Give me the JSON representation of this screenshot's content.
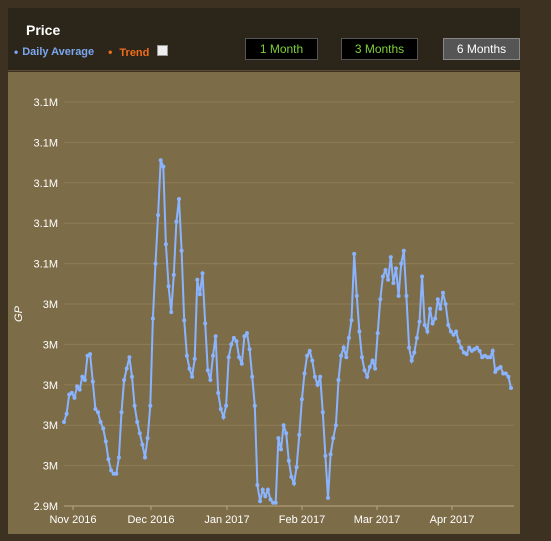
{
  "header": {
    "title": "Price",
    "legend": {
      "daily_average": "Daily Average",
      "trend": "Trend"
    },
    "ranges": [
      {
        "label": "1 Month",
        "active": false
      },
      {
        "label": "3 Months",
        "active": false
      },
      {
        "label": "6 Months",
        "active": true
      }
    ]
  },
  "colors": {
    "series": "#8ab4ff",
    "trend": "#f26d1d",
    "range_text": "#7fcf3a"
  },
  "chart_data": {
    "type": "line",
    "ylabel": "GP",
    "y_tick_labels": [
      "2.9M",
      "3M",
      "3M",
      "3M",
      "3M",
      "3M",
      "3.1M",
      "3.1M",
      "3.1M",
      "3.1M",
      "3.1M"
    ],
    "ylim": [
      2900000,
      3150000
    ],
    "x_tick_labels": [
      "Nov 2016",
      "Dec 2016",
      "Jan 2017",
      "Feb 2017",
      "Mar 2017",
      "Apr 2017"
    ],
    "x_start": "2016-10-31",
    "x_end": "2017-04-28",
    "series": [
      {
        "name": "Daily Average",
        "values": [
          2952000,
          2957000,
          2969000,
          2970000,
          2967000,
          2974000,
          2972000,
          2980000,
          2978000,
          2993000,
          2994000,
          2977000,
          2960000,
          2958000,
          2952000,
          2948000,
          2940000,
          2929000,
          2922000,
          2920000,
          2920000,
          2930000,
          2958000,
          2978000,
          2985000,
          2992000,
          2980000,
          2962000,
          2952000,
          2945000,
          2938000,
          2930000,
          2942000,
          2962000,
          3016000,
          3050000,
          3080000,
          3114000,
          3110000,
          3062000,
          3036000,
          3020000,
          3043000,
          3076000,
          3090000,
          3058000,
          3015000,
          2993000,
          2985000,
          2980000,
          2991000,
          3040000,
          3031000,
          3044000,
          3013000,
          2984000,
          2978000,
          2993000,
          3005000,
          2970000,
          2960000,
          2955000,
          2962000,
          2992000,
          3000000,
          3004000,
          3002000,
          2992000,
          2988000,
          3005000,
          3007000,
          2997000,
          2980000,
          2962000,
          2913000,
          2903000,
          2910000,
          2906000,
          2910000,
          2904000,
          2902000,
          2902000,
          2942000,
          2935000,
          2950000,
          2945000,
          2928000,
          2918000,
          2914000,
          2924000,
          2944000,
          2966000,
          2982000,
          2993000,
          2996000,
          2990000,
          2980000,
          2975000,
          2980000,
          2958000,
          2931000,
          2905000,
          2932000,
          2942000,
          2950000,
          2978000,
          2993000,
          2998000,
          2992000,
          3004000,
          3015000,
          3056000,
          3030000,
          3008000,
          2992000,
          2984000,
          2980000,
          2986000,
          2990000,
          2985000,
          3007000,
          3028000,
          3042000,
          3046000,
          3040000,
          3054000,
          3038000,
          3047000,
          3030000,
          3050000,
          3058000,
          3030000,
          2998000,
          2990000,
          2995000,
          3004000,
          3014000,
          3042000,
          3012000,
          3008000,
          3022000,
          3013000,
          3016000,
          3028000,
          3022000,
          3032000,
          3025000,
          3012000,
          3008000,
          3006000,
          3008000,
          3002000,
          2998000,
          2995000,
          2994000,
          2998000,
          2996000,
          2997000,
          2998000,
          2996000,
          2992000,
          2993000,
          2992000,
          2992000,
          2996000,
          2983000,
          2985000,
          2986000,
          2982000,
          2982000,
          2980000,
          2973000
        ]
      }
    ],
    "grid": "horizontal",
    "legend_position": "top-left"
  }
}
